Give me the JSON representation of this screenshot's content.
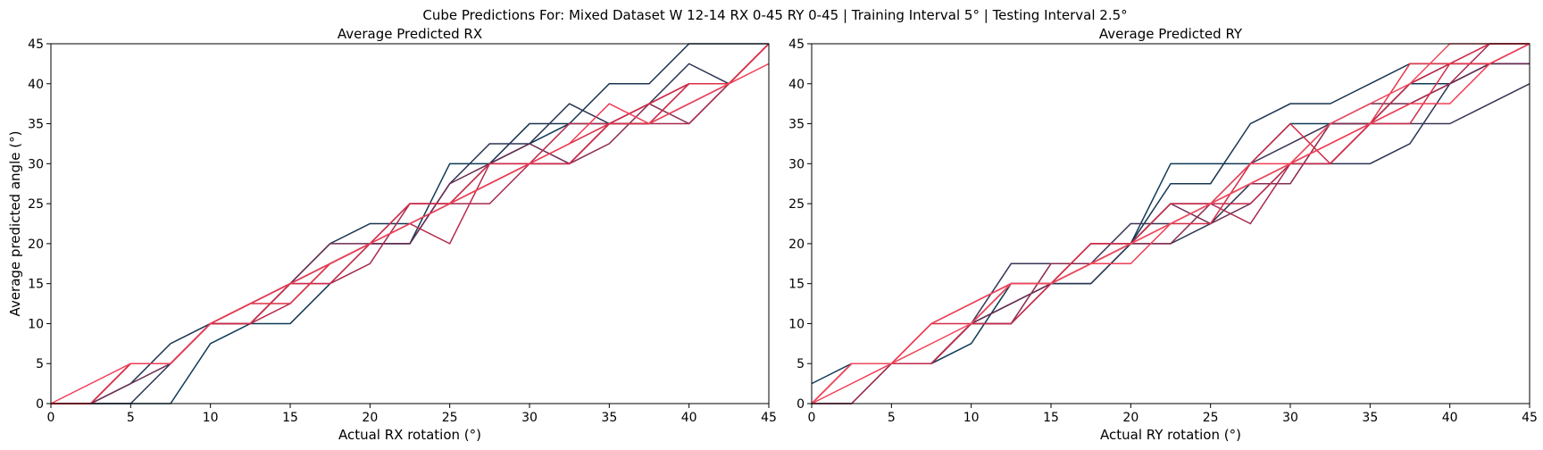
{
  "figure": {
    "suptitle": "Cube Predictions For: Mixed Dataset W 12-14 RX 0-45 RY 0-45 | Training Interval 5° | Testing Interval 2.5°"
  },
  "chart_data": [
    {
      "type": "line",
      "title": "Average Predicted RX",
      "xlabel": "Actual RX rotation (°)",
      "ylabel": "Average predicted angle (°)",
      "xlim": [
        0,
        45
      ],
      "ylim": [
        0,
        45
      ],
      "xticks": [
        0,
        5,
        10,
        15,
        20,
        25,
        30,
        35,
        40,
        45
      ],
      "yticks": [
        0,
        5,
        10,
        15,
        20,
        25,
        30,
        35,
        40,
        45
      ],
      "grid": false,
      "x": [
        0,
        2.5,
        5,
        7.5,
        10,
        12.5,
        15,
        17.5,
        20,
        22.5,
        25,
        27.5,
        30,
        32.5,
        35,
        37.5,
        40,
        42.5,
        45
      ],
      "series": [
        {
          "color": "#0f3a57",
          "values": [
            0,
            0,
            0,
            0,
            7.5,
            10,
            10,
            15,
            20,
            20,
            30,
            30,
            32.5,
            35,
            35,
            35,
            40,
            40,
            45
          ]
        },
        {
          "color": "#1a3452",
          "values": [
            0,
            0,
            2.5,
            7.5,
            10,
            12.5,
            15,
            20,
            22.5,
            22.5,
            25,
            30,
            35,
            35,
            40,
            40,
            45,
            45,
            45
          ]
        },
        {
          "color": "#2a3553",
          "values": [
            0,
            0,
            0,
            5,
            10,
            10,
            15,
            17.5,
            20,
            20,
            27.5,
            32.5,
            32.5,
            37.5,
            35,
            37.5,
            42.5,
            40,
            45
          ]
        },
        {
          "color": "#6b2d52",
          "values": [
            0,
            0,
            2.5,
            5,
            10,
            12.5,
            15,
            20,
            20,
            20,
            27.5,
            30,
            32.5,
            30,
            35,
            35,
            37.5,
            40,
            45
          ]
        },
        {
          "color": "#8a2c50",
          "values": [
            0,
            0,
            5,
            5,
            10,
            10,
            15,
            17.5,
            20,
            25,
            25,
            27.5,
            30,
            30,
            32.5,
            37.5,
            35,
            40,
            45
          ]
        },
        {
          "color": "#a62a4d",
          "values": [
            0,
            0,
            5,
            5,
            10,
            12.5,
            15,
            15,
            17.5,
            25,
            25,
            25,
            30,
            30,
            35,
            35,
            35,
            40,
            45
          ]
        },
        {
          "color": "#b82a4b",
          "values": [
            0,
            0,
            5,
            5,
            10,
            10,
            12.5,
            17.5,
            20,
            22.5,
            20,
            30,
            30,
            35,
            35,
            37.5,
            40,
            40,
            45
          ]
        },
        {
          "color": "#d02b48",
          "values": [
            0,
            0,
            5,
            5,
            10,
            10,
            15,
            15,
            20,
            25,
            25,
            30,
            30,
            30,
            35,
            37.5,
            40,
            40,
            45
          ]
        },
        {
          "color": "#dc2f46",
          "values": [
            0,
            0,
            5,
            5,
            10,
            12.5,
            12.5,
            17.5,
            20,
            22.5,
            25,
            27.5,
            30,
            32.5,
            35,
            35,
            40,
            40,
            45
          ]
        },
        {
          "color": "#ef3e55",
          "values": [
            0,
            2.5,
            5,
            5,
            10,
            12.5,
            15,
            17.5,
            20,
            22.5,
            25,
            27.5,
            30,
            32.5,
            37.5,
            35,
            37.5,
            40,
            42.5
          ]
        }
      ]
    },
    {
      "type": "line",
      "title": "Average Predicted RY",
      "xlabel": "Actual RY rotation (°)",
      "ylabel": "",
      "xlim": [
        0,
        45
      ],
      "ylim": [
        0,
        45
      ],
      "xticks": [
        0,
        5,
        10,
        15,
        20,
        25,
        30,
        35,
        40,
        45
      ],
      "yticks": [
        0,
        5,
        10,
        15,
        20,
        25,
        30,
        35,
        40,
        45
      ],
      "grid": false,
      "x": [
        0,
        2.5,
        5,
        7.5,
        10,
        12.5,
        15,
        17.5,
        20,
        22.5,
        25,
        27.5,
        30,
        32.5,
        35,
        37.5,
        40,
        42.5,
        45
      ],
      "series": [
        {
          "color": "#0f3a57",
          "values": [
            2.5,
            5,
            5,
            5,
            7.5,
            15,
            15,
            15,
            20,
            30,
            30,
            30,
            35,
            35,
            35,
            40,
            40,
            42.5,
            45
          ]
        },
        {
          "color": "#1a3452",
          "values": [
            0,
            5,
            5,
            5,
            10,
            15,
            15,
            17.5,
            20,
            27.5,
            27.5,
            35,
            37.5,
            37.5,
            40,
            42.5,
            42.5,
            42.5,
            42.5
          ]
        },
        {
          "color": "#2a3553",
          "values": [
            0,
            0,
            5,
            5,
            10,
            12.5,
            15,
            15,
            20,
            20,
            22.5,
            27.5,
            30,
            30,
            30,
            32.5,
            40,
            42.5,
            42.5
          ]
        },
        {
          "color": "#3b3456",
          "values": [
            0,
            5,
            5,
            5,
            10,
            17.5,
            17.5,
            17.5,
            22.5,
            22.5,
            25,
            30,
            32.5,
            35,
            35,
            35,
            35,
            37.5,
            40
          ]
        },
        {
          "color": "#6b2d52",
          "values": [
            0,
            5,
            5,
            5,
            10,
            12.5,
            15,
            20,
            20,
            25,
            22.5,
            25,
            30,
            35,
            37.5,
            37.5,
            40,
            42.5,
            42.5
          ]
        },
        {
          "color": "#8a2c50",
          "values": [
            0,
            5,
            5,
            5,
            10,
            10,
            17.5,
            17.5,
            20,
            20,
            25,
            27.5,
            27.5,
            35,
            35,
            40,
            42.5,
            42.5,
            45
          ]
        },
        {
          "color": "#a62a4d",
          "values": [
            0,
            0,
            5,
            5,
            10,
            10,
            15,
            20,
            20,
            25,
            25,
            22.5,
            30,
            30,
            35,
            37.5,
            40,
            45,
            45
          ]
        },
        {
          "color": "#c02a4a",
          "values": [
            0,
            5,
            5,
            5,
            10,
            10,
            15,
            17.5,
            20,
            25,
            25,
            25,
            30,
            30,
            35,
            40,
            42.5,
            45,
            45
          ]
        },
        {
          "color": "#d42c48",
          "values": [
            0,
            5,
            5,
            10,
            10,
            15,
            15,
            20,
            20,
            22.5,
            22.5,
            30,
            35,
            30,
            35,
            35,
            42.5,
            45,
            45
          ]
        },
        {
          "color": "#e83447",
          "values": [
            0,
            5,
            5,
            10,
            12.5,
            15,
            15,
            17.5,
            20,
            22.5,
            25,
            27.5,
            30,
            32.5,
            35,
            42.5,
            42.5,
            42.5,
            45
          ]
        },
        {
          "color": "#ef3e55",
          "values": [
            0,
            2.5,
            5,
            10,
            12.5,
            15,
            15,
            17.5,
            17.5,
            22.5,
            25,
            30,
            30,
            32.5,
            35,
            37.5,
            37.5,
            42.5,
            45
          ]
        },
        {
          "color": "#f04a5c",
          "values": [
            0,
            5,
            5,
            7.5,
            10,
            15,
            15,
            17.5,
            20,
            22.5,
            25,
            27.5,
            30,
            35,
            37.5,
            40,
            45,
            45,
            45
          ]
        }
      ]
    }
  ]
}
